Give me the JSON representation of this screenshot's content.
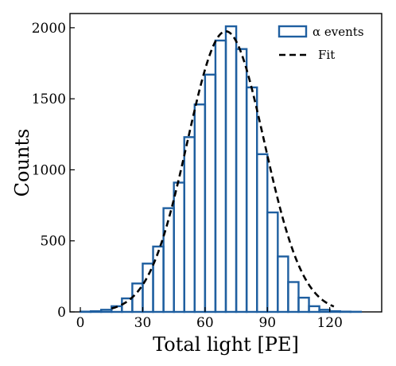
{
  "chart_data": {
    "type": "histogram",
    "xlabel": "Total light [PE]",
    "ylabel": "Counts",
    "xlim": [
      -5,
      145
    ],
    "ylim": [
      0,
      2100
    ],
    "xticks": [
      0,
      30,
      60,
      90,
      120
    ],
    "yticks": [
      0,
      500,
      1000,
      1500,
      2000
    ],
    "grid": false,
    "legend_position": "top-right",
    "colors": {
      "histogram": "#1f5fa0",
      "fit": "#000000"
    },
    "series": [
      {
        "name": "α events",
        "type": "step-histogram",
        "bin_edges": [
          0,
          5,
          10,
          15,
          20,
          25,
          30,
          35,
          40,
          45,
          50,
          55,
          60,
          65,
          70,
          75,
          80,
          85,
          90,
          95,
          100,
          105,
          110,
          115,
          120,
          125,
          130,
          135,
          140
        ],
        "counts": [
          2,
          5,
          15,
          40,
          95,
          200,
          340,
          460,
          730,
          910,
          1230,
          1460,
          1670,
          1910,
          2010,
          1850,
          1580,
          1110,
          700,
          390,
          210,
          100,
          40,
          15,
          5,
          2,
          1,
          0
        ]
      },
      {
        "name": "Fit",
        "type": "gaussian",
        "amplitude": 1975,
        "mean": 70,
        "sigma": 18.5
      }
    ]
  }
}
